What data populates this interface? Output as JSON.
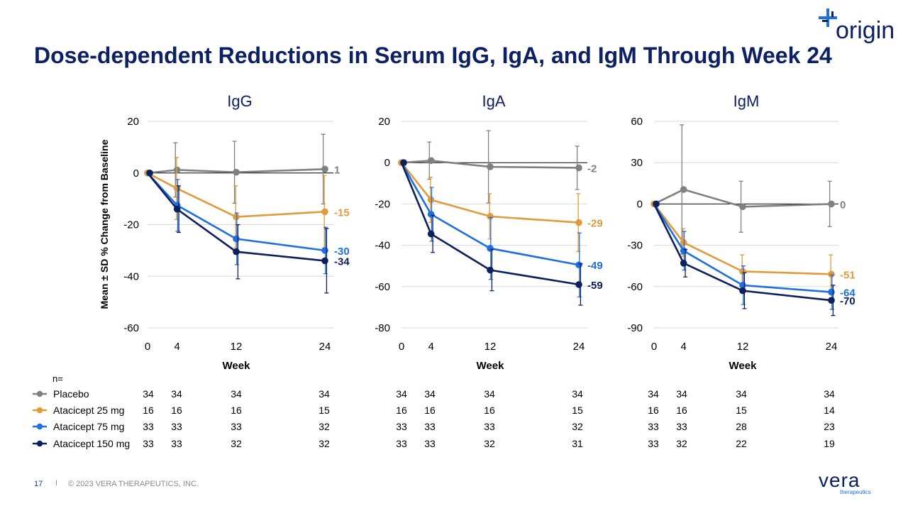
{
  "slide": {
    "title": "Dose-dependent Reductions in Serum IgG, IgA, and IgM Through Week 24",
    "brand_logo": "origin",
    "company_logo": "vera",
    "company_logo_sub": "therapeutics",
    "footer_page": "17",
    "footer_separator": "I",
    "footer_copyright": "© 2023 VERA THERAPEUTICS, INC."
  },
  "colors": {
    "title": "#0d2063",
    "placebo": "#808080",
    "atacicept_25": "#e09b3d",
    "atacicept_75": "#1f6fe0",
    "atacicept_150": "#0d1f5c"
  },
  "ylabel": "Mean ± SD % Change from Baseline",
  "n_table": {
    "label": "n=",
    "rows": [
      {
        "name": "Placebo",
        "color_key": "placebo",
        "IgG": [
          "34",
          "34",
          "34",
          "34"
        ],
        "IgA": [
          "34",
          "34",
          "34",
          "34"
        ],
        "IgM": [
          "34",
          "34",
          "34",
          "34"
        ]
      },
      {
        "name": "Atacicept 25 mg",
        "color_key": "atacicept_25",
        "IgG": [
          "16",
          "16",
          "16",
          "15"
        ],
        "IgA": [
          "16",
          "16",
          "16",
          "15"
        ],
        "IgM": [
          "16",
          "16",
          "15",
          "14"
        ]
      },
      {
        "name": "Atacicept 75 mg",
        "color_key": "atacicept_75",
        "IgG": [
          "33",
          "33",
          "33",
          "32"
        ],
        "IgA": [
          "33",
          "33",
          "33",
          "32"
        ],
        "IgM": [
          "33",
          "33",
          "28",
          "23"
        ]
      },
      {
        "name": "Atacicept 150 mg",
        "color_key": "atacicept_150",
        "IgG": [
          "33",
          "33",
          "32",
          "32"
        ],
        "IgA": [
          "33",
          "33",
          "32",
          "31"
        ],
        "IgM": [
          "33",
          "32",
          "22",
          "19"
        ]
      }
    ]
  },
  "chart_data": [
    {
      "type": "line",
      "title": "IgG",
      "xlabel": "Week",
      "x": [
        0,
        4,
        12,
        24
      ],
      "xlim": [
        0,
        24
      ],
      "ylim": [
        -60,
        20
      ],
      "yticks": [
        20,
        0,
        -20,
        -40,
        -60
      ],
      "series": [
        {
          "name": "Placebo",
          "color_key": "placebo",
          "values": [
            0,
            1.2,
            0.3,
            1.5
          ],
          "err": [
            0,
            10.5,
            12,
            13.5
          ],
          "end_label": "1"
        },
        {
          "name": "Atacicept 25 mg",
          "color_key": "atacicept_25",
          "values": [
            0,
            -6,
            -17,
            -15
          ],
          "err": [
            0,
            12,
            12,
            14
          ],
          "end_label": "-15"
        },
        {
          "name": "Atacicept 75 mg",
          "color_key": "atacicept_75",
          "values": [
            0,
            -12.5,
            -25.5,
            -30
          ],
          "err": [
            0,
            10,
            10,
            9
          ],
          "end_label": "-30"
        },
        {
          "name": "Atacicept 150 mg",
          "color_key": "atacicept_150",
          "values": [
            0,
            -14,
            -30.5,
            -34
          ],
          "err": [
            0,
            9,
            10.5,
            12.5
          ],
          "end_label": "-34"
        }
      ]
    },
    {
      "type": "line",
      "title": "IgA",
      "xlabel": "Week",
      "x": [
        0,
        4,
        12,
        24
      ],
      "xlim": [
        0,
        24
      ],
      "ylim": [
        -80,
        20
      ],
      "yticks": [
        20,
        0,
        -20,
        -40,
        -60,
        -80
      ],
      "series": [
        {
          "name": "Placebo",
          "color_key": "placebo",
          "values": [
            0,
            1,
            -2,
            -2.5
          ],
          "err": [
            0,
            9,
            17.5,
            10.5
          ],
          "end_label": "-2"
        },
        {
          "name": "Atacicept 25 mg",
          "color_key": "atacicept_25",
          "values": [
            0,
            -18,
            -26,
            -29
          ],
          "err": [
            0,
            11,
            11,
            14
          ],
          "end_label": "-29"
        },
        {
          "name": "Atacicept 75 mg",
          "color_key": "atacicept_75",
          "values": [
            0,
            -25,
            -41.5,
            -49.5
          ],
          "err": [
            0,
            13,
            15,
            15.5
          ],
          "end_label": "-49"
        },
        {
          "name": "Atacicept 150 mg",
          "color_key": "atacicept_150",
          "values": [
            0,
            -34.5,
            -52,
            -59
          ],
          "err": [
            0,
            9,
            10,
            10
          ],
          "end_label": "-59"
        }
      ]
    },
    {
      "type": "line",
      "title": "IgM",
      "xlabel": "Week",
      "x": [
        0,
        4,
        12,
        24
      ],
      "xlim": [
        0,
        24
      ],
      "ylim": [
        -90,
        60
      ],
      "yticks": [
        60,
        30,
        0,
        -30,
        -60,
        -90
      ],
      "series": [
        {
          "name": "Placebo",
          "color_key": "placebo",
          "values": [
            0,
            10.5,
            -2,
            0
          ],
          "err": [
            0,
            47,
            18.5,
            16.5
          ],
          "end_label": "0"
        },
        {
          "name": "Atacicept 25 mg",
          "color_key": "atacicept_25",
          "values": [
            0,
            -28,
            -49,
            -51
          ],
          "err": [
            0,
            10,
            12,
            14
          ],
          "end_label": "-51"
        },
        {
          "name": "Atacicept 75 mg",
          "color_key": "atacicept_75",
          "values": [
            0,
            -34,
            -59,
            -64
          ],
          "err": [
            0,
            14,
            14,
            12.5
          ],
          "end_label": "-64"
        },
        {
          "name": "Atacicept 150 mg",
          "color_key": "atacicept_150",
          "values": [
            0,
            -43,
            -63,
            -70
          ],
          "err": [
            0,
            10,
            13,
            11
          ],
          "end_label": "-70"
        }
      ]
    }
  ]
}
